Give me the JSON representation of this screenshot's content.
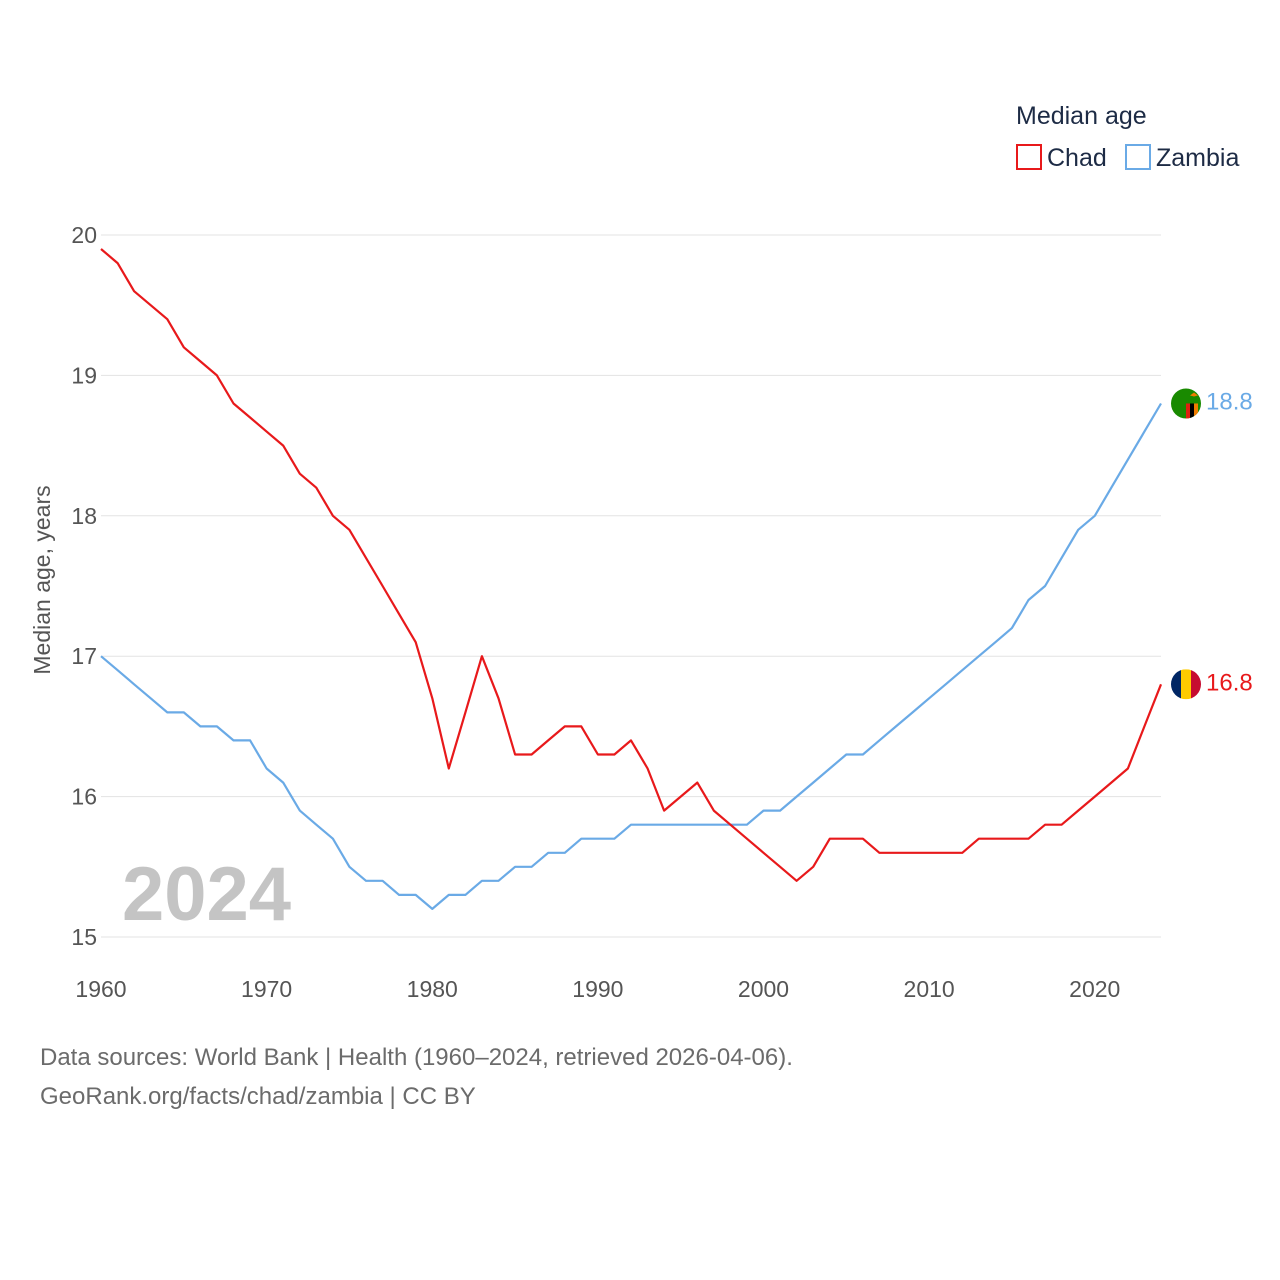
{
  "chart_data": {
    "type": "line",
    "legend_title": "Median age",
    "ylabel": "Median age, years",
    "xlabel": "",
    "ylim": [
      15,
      20
    ],
    "xlim": [
      1960,
      2024
    ],
    "x_ticks": [
      "1960",
      "1970",
      "1980",
      "1990",
      "2000",
      "2010",
      "2020"
    ],
    "y_ticks": [
      "15",
      "16",
      "17",
      "18",
      "19",
      "20"
    ],
    "year_label": "2024",
    "legend_position": "top-right",
    "grid": true,
    "series": [
      {
        "name": "Chad",
        "color": "#e8191b",
        "end_label": "16.8",
        "flag": "chad-flag",
        "x": [
          1960,
          1961,
          1962,
          1963,
          1964,
          1965,
          1966,
          1967,
          1968,
          1969,
          1970,
          1971,
          1972,
          1973,
          1974,
          1975,
          1976,
          1977,
          1978,
          1979,
          1980,
          1981,
          1982,
          1983,
          1984,
          1985,
          1986,
          1987,
          1988,
          1989,
          1990,
          1991,
          1992,
          1993,
          1994,
          1995,
          1996,
          1997,
          1998,
          1999,
          2000,
          2001,
          2002,
          2003,
          2004,
          2005,
          2006,
          2007,
          2008,
          2009,
          2010,
          2011,
          2012,
          2013,
          2014,
          2015,
          2016,
          2017,
          2018,
          2019,
          2020,
          2021,
          2022,
          2023,
          2024
        ],
        "values": [
          19.9,
          19.8,
          19.6,
          19.5,
          19.4,
          19.2,
          19.1,
          19.0,
          18.8,
          18.7,
          18.6,
          18.5,
          18.3,
          18.2,
          18.0,
          17.9,
          17.7,
          17.5,
          17.3,
          17.1,
          16.7,
          16.2,
          16.6,
          17.0,
          16.7,
          16.3,
          16.3,
          16.4,
          16.5,
          16.5,
          16.3,
          16.3,
          16.4,
          16.2,
          15.9,
          16.0,
          16.1,
          15.9,
          15.8,
          15.7,
          15.6,
          15.5,
          15.4,
          15.5,
          15.7,
          15.7,
          15.7,
          15.6,
          15.6,
          15.6,
          15.6,
          15.6,
          15.6,
          15.7,
          15.7,
          15.7,
          15.7,
          15.8,
          15.8,
          15.9,
          16.0,
          16.1,
          16.2,
          16.5,
          16.8
        ]
      },
      {
        "name": "Zambia",
        "color": "#6aaae6",
        "end_label": "18.8",
        "flag": "zambia-flag",
        "x": [
          1960,
          1961,
          1962,
          1963,
          1964,
          1965,
          1966,
          1967,
          1968,
          1969,
          1970,
          1971,
          1972,
          1973,
          1974,
          1975,
          1976,
          1977,
          1978,
          1979,
          1980,
          1981,
          1982,
          1983,
          1984,
          1985,
          1986,
          1987,
          1988,
          1989,
          1990,
          1991,
          1992,
          1993,
          1994,
          1995,
          1996,
          1997,
          1998,
          1999,
          2000,
          2001,
          2002,
          2003,
          2004,
          2005,
          2006,
          2007,
          2008,
          2009,
          2010,
          2011,
          2012,
          2013,
          2014,
          2015,
          2016,
          2017,
          2018,
          2019,
          2020,
          2021,
          2022,
          2023,
          2024
        ],
        "values": [
          17.0,
          16.9,
          16.8,
          16.7,
          16.6,
          16.6,
          16.5,
          16.5,
          16.4,
          16.4,
          16.2,
          16.1,
          15.9,
          15.8,
          15.7,
          15.5,
          15.4,
          15.4,
          15.3,
          15.3,
          15.2,
          15.3,
          15.3,
          15.4,
          15.4,
          15.5,
          15.5,
          15.6,
          15.6,
          15.7,
          15.7,
          15.7,
          15.8,
          15.8,
          15.8,
          15.8,
          15.8,
          15.8,
          15.8,
          15.8,
          15.9,
          15.9,
          16.0,
          16.1,
          16.2,
          16.3,
          16.3,
          16.4,
          16.5,
          16.6,
          16.7,
          16.8,
          16.9,
          17.0,
          17.1,
          17.2,
          17.4,
          17.5,
          17.7,
          17.9,
          18.0,
          18.2,
          18.4,
          18.6,
          18.8
        ]
      }
    ]
  },
  "footer": {
    "line1": "Data sources: World Bank | Health (1960–2024, retrieved 2026-04-06).",
    "line2": "GeoRank.org/facts/chad/zambia | CC BY"
  }
}
